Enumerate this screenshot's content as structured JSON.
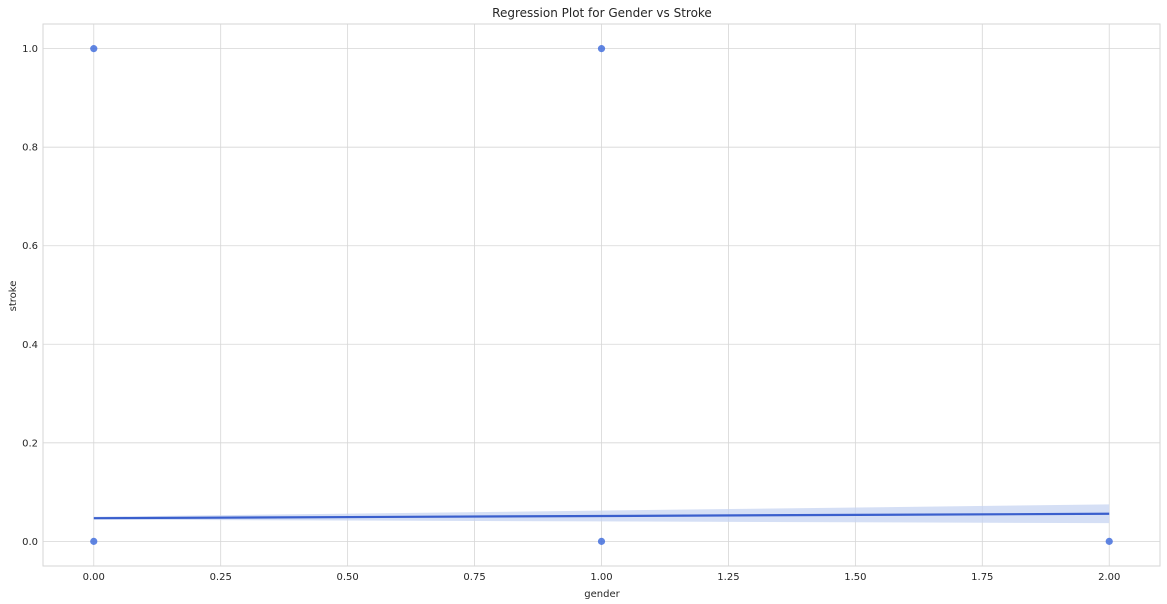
{
  "chart_data": {
    "type": "scatter",
    "title": "Regression Plot for Gender vs Stroke",
    "xlabel": "gender",
    "ylabel": "stroke",
    "xlim": [
      -0.1,
      2.1
    ],
    "ylim": [
      -0.05,
      1.05
    ],
    "xticks": [
      0.0,
      0.25,
      0.5,
      0.75,
      1.0,
      1.25,
      1.5,
      1.75,
      2.0
    ],
    "xtick_labels": [
      "0.00",
      "0.25",
      "0.50",
      "0.75",
      "1.00",
      "1.25",
      "1.50",
      "1.75",
      "2.00"
    ],
    "yticks": [
      0.0,
      0.2,
      0.4,
      0.6,
      0.8,
      1.0
    ],
    "ytick_labels": [
      "0.0",
      "0.2",
      "0.4",
      "0.6",
      "0.8",
      "1.0"
    ],
    "grid": true,
    "points": [
      {
        "x": 0,
        "y": 1
      },
      {
        "x": 1,
        "y": 1
      },
      {
        "x": 0,
        "y": 0
      },
      {
        "x": 1,
        "y": 0
      },
      {
        "x": 2,
        "y": 0
      }
    ],
    "regression": {
      "x": [
        0,
        2
      ],
      "y": [
        0.047,
        0.056
      ],
      "ci_lower": [
        0.044,
        0.037
      ],
      "ci_upper": [
        0.05,
        0.075
      ]
    },
    "colors": {
      "points": "#4470dd",
      "line": "#3a5fcd",
      "band": "#c7d4f2",
      "grid": "#d6d6d6",
      "text": "#262626"
    }
  }
}
